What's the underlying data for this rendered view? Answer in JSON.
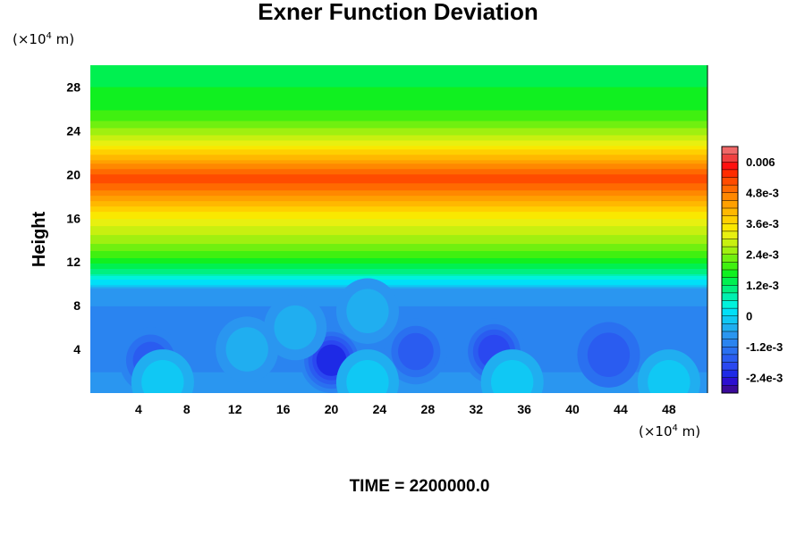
{
  "chart_data": {
    "type": "heatmap",
    "title": "Exner Function Deviation",
    "ylabel": "Height",
    "x_unit": {
      "base": "(×10",
      "exp": "4",
      "suffix": " m)"
    },
    "y_unit": {
      "base": "(×10",
      "exp": "4",
      "suffix": " m)"
    },
    "xlim": [
      0,
      51.2
    ],
    "ylim": [
      0,
      30
    ],
    "x_ticks": [
      4,
      8,
      12,
      16,
      20,
      24,
      28,
      32,
      36,
      40,
      44,
      48
    ],
    "x_tick_labels": [
      "4",
      "8",
      "12",
      "16",
      "20",
      "24",
      "28",
      "32",
      "36",
      "40",
      "44",
      "48"
    ],
    "y_ticks": [
      4,
      8,
      12,
      16,
      20,
      24,
      28
    ],
    "y_tick_labels": [
      "4",
      "8",
      "12",
      "16",
      "20",
      "24",
      "28"
    ],
    "vertical_profile": {
      "y": [
        0,
        2,
        4,
        6,
        8,
        9,
        9.6,
        10,
        10.5,
        11,
        11.5,
        12,
        13,
        14,
        15,
        16,
        17,
        18,
        19,
        19.6,
        20,
        21,
        22,
        23,
        24,
        25,
        26,
        27,
        28,
        29,
        30
      ],
      "value": [
        -0.0009,
        -0.0009,
        -0.001,
        -0.001,
        -0.0009,
        -0.0009,
        -0.0006,
        0.0,
        0.0004,
        0.0009,
        0.0013,
        0.0016,
        0.0021,
        0.0025,
        0.0029,
        0.0033,
        0.0038,
        0.0044,
        0.005,
        0.0053,
        0.0051,
        0.0045,
        0.0038,
        0.0031,
        0.0025,
        0.0021,
        0.0018,
        0.0016,
        0.0015,
        0.0014,
        0.0014
      ]
    },
    "anomalies": [
      {
        "x": 5,
        "y": 3,
        "value": -0.0018
      },
      {
        "x": 20,
        "y": 3,
        "value": -0.0023
      },
      {
        "x": 27,
        "y": 3.8,
        "value": -0.0017
      },
      {
        "x": 33.5,
        "y": 3.8,
        "value": -0.002
      },
      {
        "x": 43,
        "y": 3.5,
        "value": -0.0016
      },
      {
        "x": 13,
        "y": 4,
        "value": -0.0004
      },
      {
        "x": 17,
        "y": 6,
        "value": -0.0004
      },
      {
        "x": 23,
        "y": 7.5,
        "value": -0.0004
      },
      {
        "x": 6,
        "y": 1,
        "value": -0.0003
      },
      {
        "x": 23,
        "y": 1,
        "value": -0.0002
      },
      {
        "x": 35,
        "y": 1,
        "value": -0.0002
      },
      {
        "x": 48,
        "y": 1,
        "value": -0.0003
      }
    ],
    "colorbar": {
      "min": -0.003,
      "max": 0.0066,
      "levels": [
        -0.003,
        -0.0027,
        -0.0024,
        -0.0021,
        -0.0018,
        -0.0015,
        -0.0012,
        -0.0009,
        -0.0006,
        -0.0003,
        0.0,
        0.0003,
        0.0006,
        0.0009,
        0.0012,
        0.0015,
        0.0018,
        0.0021,
        0.0024,
        0.0027,
        0.003,
        0.0033,
        0.0036,
        0.0039,
        0.0042,
        0.0045,
        0.0048,
        0.0051,
        0.0054,
        0.0057,
        0.006,
        0.0063,
        0.0066
      ],
      "colors": [
        "#3a0a9a",
        "#2c0fd0",
        "#1e2ae6",
        "#2a48f0",
        "#2a5cf0",
        "#2a70f0",
        "#2a84f0",
        "#2a96f0",
        "#20aef0",
        "#10c8f4",
        "#00e0f8",
        "#00f2dc",
        "#00f0b0",
        "#00f080",
        "#00f050",
        "#10f020",
        "#40f010",
        "#70f010",
        "#a0f010",
        "#c8f010",
        "#e8f010",
        "#fae800",
        "#ffd000",
        "#ffb800",
        "#ffa000",
        "#ff8800",
        "#ff6a00",
        "#ff4c00",
        "#ff2c00",
        "#ff1010",
        "#f04040",
        "#f06868"
      ],
      "tick_values": [
        -0.0024,
        -0.0012,
        0.0,
        0.0012,
        0.0024,
        0.0036,
        0.0048,
        0.006
      ],
      "tick_labels": [
        "-2.4e-3",
        "-1.2e-3",
        "0",
        "1.2e-3",
        "2.4e-3",
        "3.6e-3",
        "4.8e-3",
        "0.006"
      ]
    }
  },
  "footer": {
    "time_label": "TIME = 2200000.0"
  }
}
